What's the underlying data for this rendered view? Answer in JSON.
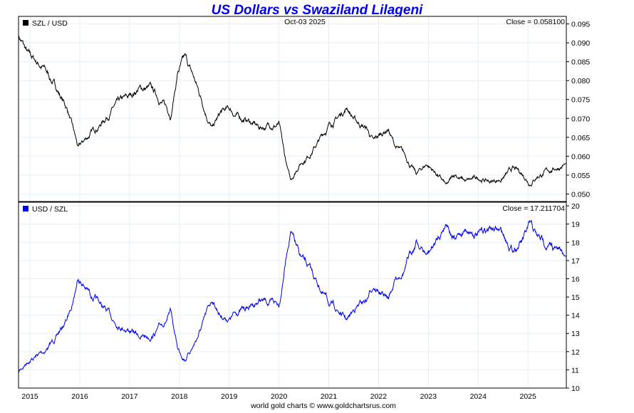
{
  "chart_data": [
    {
      "type": "line",
      "title": "US Dollars vs Swaziland Lilageni",
      "legend": "SZL / USD",
      "date_label": "Oct-03  2025",
      "close_label": "Close = 0.058100",
      "line_color": "#000000",
      "ylim": [
        0.048,
        0.097
      ],
      "yticks": [
        0.095,
        0.09,
        0.085,
        0.08,
        0.075,
        0.07,
        0.065,
        0.06,
        0.055,
        0.05
      ],
      "ytick_labels": [
        "0.095",
        "0.090",
        "0.085",
        "0.080",
        "0.075",
        "0.070",
        "0.065",
        "0.060",
        "0.055",
        "0.050"
      ],
      "x": [
        2014.77,
        2014.97,
        2015.26,
        2015.54,
        2015.76,
        2015.97,
        2016.19,
        2016.4,
        2016.69,
        2016.97,
        2017.18,
        2017.4,
        2017.61,
        2017.83,
        2017.97,
        2018.11,
        2018.28,
        2018.47,
        2018.66,
        2018.83,
        2019.0,
        2019.19,
        2019.4,
        2019.61,
        2019.83,
        2020.0,
        2020.11,
        2020.23,
        2020.4,
        2020.61,
        2020.83,
        2021.01,
        2021.19,
        2021.37,
        2021.54,
        2021.76,
        2021.9,
        2022.04,
        2022.19,
        2022.33,
        2022.54,
        2022.76,
        2022.97,
        2023.19,
        2023.37,
        2023.54,
        2023.76,
        2024.04,
        2024.26,
        2024.47,
        2024.69,
        2024.9,
        2025.04,
        2025.19,
        2025.4,
        2025.77
      ],
      "values": [
        0.0921,
        0.0864,
        0.0836,
        0.0779,
        0.0722,
        0.0617,
        0.0655,
        0.0684,
        0.0731,
        0.075,
        0.0779,
        0.0779,
        0.075,
        0.0712,
        0.0826,
        0.0855,
        0.0807,
        0.0741,
        0.0674,
        0.0712,
        0.0722,
        0.0703,
        0.0693,
        0.0674,
        0.0684,
        0.0684,
        0.0598,
        0.0532,
        0.0579,
        0.0608,
        0.0646,
        0.0684,
        0.0703,
        0.0731,
        0.0693,
        0.0674,
        0.0636,
        0.0655,
        0.0674,
        0.0627,
        0.0598,
        0.0551,
        0.0579,
        0.0551,
        0.0518,
        0.0551,
        0.0532,
        0.0541,
        0.0532,
        0.0541,
        0.0564,
        0.0551,
        0.0532,
        0.0551,
        0.056,
        0.0581
      ]
    },
    {
      "type": "line",
      "legend": "USD / SZL",
      "close_label": "Close = 17.211704",
      "line_color": "#0000ee",
      "derived_from": "reciprocal of SZL / USD",
      "ylim": [
        10,
        20.2
      ],
      "yticks": [
        20,
        19,
        18,
        17,
        16,
        15,
        14,
        13,
        12,
        11,
        10
      ],
      "ytick_labels": [
        "20",
        "19",
        "18",
        "17",
        "16",
        "15",
        "14",
        "13",
        "12",
        "11",
        "10"
      ]
    }
  ],
  "xaxis": {
    "xlim": [
      2014.77,
      2025.77
    ],
    "ticks": [
      2015,
      2016,
      2017,
      2018,
      2019,
      2020,
      2021,
      2022,
      2023,
      2024,
      2025
    ],
    "tick_labels": [
      "2015",
      "2016",
      "2017",
      "2018",
      "2019",
      "2020",
      "2021",
      "2022",
      "2023",
      "2024",
      "2025"
    ]
  },
  "legend_colors": {
    "top": "#000000",
    "bottom": "#0000ee"
  },
  "footer": "world gold charts © www.goldchartsrus.com"
}
